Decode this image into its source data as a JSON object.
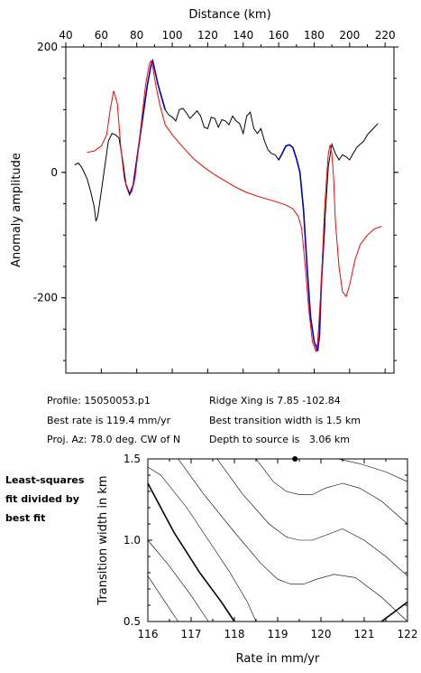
{
  "chart_data": [
    {
      "type": "line",
      "xlabel": "Distance (km)",
      "ylabel": "Anomaly amplitude",
      "xlim": [
        40,
        225
      ],
      "ylim": [
        -320,
        200
      ],
      "x_ticks": [
        "40",
        "60",
        "80",
        "100",
        "120",
        "140",
        "160",
        "180",
        "200",
        "220"
      ],
      "y_ticks": [
        "200",
        "0",
        "-200"
      ],
      "series": [
        {
          "color": "#000000",
          "points": [
            [
              45,
              12
            ],
            [
              47,
              15
            ],
            [
              49,
              8
            ],
            [
              52,
              -10
            ],
            [
              54,
              -30
            ],
            [
              56,
              -55
            ],
            [
              57,
              -78
            ],
            [
              58,
              -70
            ],
            [
              60,
              -30
            ],
            [
              62,
              10
            ],
            [
              64,
              50
            ],
            [
              66,
              62
            ],
            [
              68,
              60
            ],
            [
              70,
              55
            ],
            [
              72,
              20
            ],
            [
              74,
              -20
            ],
            [
              76,
              -35
            ],
            [
              78,
              -20
            ],
            [
              80,
              20
            ],
            [
              82,
              60
            ],
            [
              84,
              100
            ],
            [
              86,
              140
            ],
            [
              88,
              170
            ],
            [
              89,
              178
            ],
            [
              90,
              165
            ],
            [
              92,
              140
            ],
            [
              94,
              120
            ],
            [
              96,
              100
            ],
            [
              98,
              92
            ],
            [
              100,
              88
            ],
            [
              102,
              82
            ],
            [
              104,
              100
            ],
            [
              106,
              102
            ],
            [
              108,
              95
            ],
            [
              110,
              86
            ],
            [
              112,
              92
            ],
            [
              114,
              98
            ],
            [
              116,
              90
            ],
            [
              118,
              72
            ],
            [
              120,
              70
            ],
            [
              122,
              88
            ],
            [
              124,
              86
            ],
            [
              126,
              72
            ],
            [
              128,
              84
            ],
            [
              130,
              82
            ],
            [
              132,
              76
            ],
            [
              134,
              90
            ],
            [
              136,
              82
            ],
            [
              138,
              78
            ],
            [
              140,
              62
            ],
            [
              142,
              90
            ],
            [
              144,
              96
            ],
            [
              146,
              70
            ],
            [
              148,
              62
            ],
            [
              150,
              70
            ],
            [
              152,
              50
            ],
            [
              154,
              36
            ],
            [
              156,
              30
            ],
            [
              158,
              28
            ],
            [
              160,
              20
            ],
            [
              162,
              30
            ],
            [
              164,
              42
            ],
            [
              166,
              44
            ],
            [
              168,
              40
            ],
            [
              170,
              22
            ],
            [
              172,
              0
            ],
            [
              174,
              -60
            ],
            [
              176,
              -150
            ],
            [
              178,
              -230
            ],
            [
              180,
              -270
            ],
            [
              182,
              -285
            ],
            [
              183,
              -260
            ],
            [
              184,
              -180
            ],
            [
              186,
              -80
            ],
            [
              188,
              10
            ],
            [
              190,
              45
            ],
            [
              192,
              30
            ],
            [
              194,
              20
            ],
            [
              196,
              28
            ],
            [
              198,
              25
            ],
            [
              200,
              20
            ],
            [
              202,
              30
            ],
            [
              204,
              40
            ],
            [
              206,
              45
            ],
            [
              208,
              50
            ],
            [
              210,
              60
            ],
            [
              212,
              66
            ],
            [
              214,
              72
            ],
            [
              216,
              78
            ]
          ]
        },
        {
          "color": "#0000cc",
          "points": [
            [
              74,
              -20
            ],
            [
              76,
              -35
            ],
            [
              78,
              -20
            ],
            [
              80,
              20
            ],
            [
              82,
              60
            ],
            [
              84,
              100
            ],
            [
              86,
              140
            ],
            [
              88,
              170
            ],
            [
              89,
              178
            ],
            [
              90,
              165
            ],
            [
              92,
              140
            ],
            [
              94,
              120
            ],
            [
              96,
              100
            ],
            [
              160,
              20
            ],
            [
              162,
              30
            ],
            [
              164,
              42
            ],
            [
              166,
              44
            ],
            [
              168,
              40
            ],
            [
              170,
              22
            ],
            [
              172,
              0
            ],
            [
              174,
              -60
            ],
            [
              176,
              -150
            ],
            [
              178,
              -230
            ],
            [
              180,
              -270
            ],
            [
              182,
              -285
            ],
            [
              183,
              -260
            ],
            [
              184,
              -180
            ],
            [
              186,
              -80
            ]
          ]
        },
        {
          "color": "#ff0000",
          "points": [
            [
              52,
              32
            ],
            [
              56,
              34
            ],
            [
              60,
              42
            ],
            [
              63,
              60
            ],
            [
              65,
              100
            ],
            [
              67,
              130
            ],
            [
              69,
              110
            ],
            [
              71,
              40
            ],
            [
              73,
              -10
            ],
            [
              75,
              -30
            ],
            [
              77,
              -32
            ],
            [
              79,
              -10
            ],
            [
              81,
              40
            ],
            [
              83,
              90
            ],
            [
              85,
              140
            ],
            [
              87,
              172
            ],
            [
              88,
              178
            ],
            [
              89,
              168
            ],
            [
              91,
              135
            ],
            [
              93,
              108
            ],
            [
              96,
              76
            ],
            [
              100,
              60
            ],
            [
              106,
              40
            ],
            [
              112,
              22
            ],
            [
              118,
              8
            ],
            [
              124,
              -4
            ],
            [
              130,
              -14
            ],
            [
              136,
              -24
            ],
            [
              142,
              -32
            ],
            [
              148,
              -38
            ],
            [
              154,
              -43
            ],
            [
              160,
              -48
            ],
            [
              164,
              -52
            ],
            [
              168,
              -58
            ],
            [
              171,
              -70
            ],
            [
              173,
              -90
            ],
            [
              175,
              -150
            ],
            [
              177,
              -220
            ],
            [
              179,
              -270
            ],
            [
              181,
              -285
            ],
            [
              182,
              -270
            ],
            [
              184,
              -180
            ],
            [
              186,
              -50
            ],
            [
              188,
              30
            ],
            [
              189,
              44
            ],
            [
              190,
              30
            ],
            [
              191,
              -10
            ],
            [
              192,
              -80
            ],
            [
              194,
              -150
            ],
            [
              196,
              -190
            ],
            [
              198,
              -198
            ],
            [
              200,
              -180
            ],
            [
              203,
              -140
            ],
            [
              206,
              -115
            ],
            [
              210,
              -100
            ],
            [
              214,
              -90
            ],
            [
              218,
              -86
            ]
          ]
        }
      ]
    },
    {
      "type": "contour",
      "xlabel": "Rate in mm/yr",
      "ylabel": "Transition width in km",
      "xlim": [
        116,
        122
      ],
      "ylim": [
        0.5,
        1.5
      ],
      "x_ticks": [
        "116",
        "117",
        "118",
        "119",
        "120",
        "121",
        "122"
      ],
      "y_ticks": [
        "0.5",
        "1.0",
        "1.5"
      ],
      "best_fit": {
        "rate": 119.4,
        "width": 1.5
      },
      "contours": [
        {
          "bold": true,
          "points": [
            [
              116.0,
              1.35
            ],
            [
              116.6,
              1.05
            ],
            [
              117.2,
              0.8
            ],
            [
              117.7,
              0.62
            ],
            [
              118.0,
              0.5
            ]
          ]
        },
        {
          "bold": false,
          "points": [
            [
              116.0,
              1.0
            ],
            [
              116.5,
              0.84
            ],
            [
              117.0,
              0.66
            ],
            [
              117.4,
              0.5
            ]
          ]
        },
        {
          "bold": false,
          "points": [
            [
              116.0,
              0.78
            ],
            [
              116.4,
              0.62
            ],
            [
              116.7,
              0.5
            ]
          ]
        },
        {
          "bold": false,
          "points": [
            [
              116.0,
              1.45
            ],
            [
              116.3,
              1.4
            ],
            [
              116.9,
              1.2
            ],
            [
              117.4,
              1.0
            ],
            [
              117.9,
              0.8
            ],
            [
              118.3,
              0.62
            ],
            [
              118.5,
              0.5
            ]
          ]
        },
        {
          "bold": false,
          "points": [
            [
              116.7,
              1.5
            ],
            [
              117.3,
              1.28
            ],
            [
              118.0,
              1.05
            ],
            [
              118.6,
              0.86
            ],
            [
              119.0,
              0.76
            ],
            [
              119.3,
              0.73
            ],
            [
              119.6,
              0.73
            ],
            [
              119.9,
              0.76
            ],
            [
              120.3,
              0.79
            ],
            [
              120.8,
              0.77
            ],
            [
              121.4,
              0.65
            ],
            [
              122.0,
              0.5
            ]
          ]
        },
        {
          "bold": false,
          "points": [
            [
              117.6,
              1.5
            ],
            [
              118.2,
              1.28
            ],
            [
              118.8,
              1.1
            ],
            [
              119.2,
              1.02
            ],
            [
              119.5,
              1.0
            ],
            [
              119.8,
              1.0
            ],
            [
              120.1,
              1.03
            ],
            [
              120.5,
              1.07
            ],
            [
              121.0,
              1.0
            ],
            [
              121.5,
              0.9
            ],
            [
              122.0,
              0.78
            ]
          ]
        },
        {
          "bold": false,
          "points": [
            [
              118.5,
              1.5
            ],
            [
              118.9,
              1.36
            ],
            [
              119.2,
              1.3
            ],
            [
              119.5,
              1.28
            ],
            [
              119.8,
              1.28
            ],
            [
              120.1,
              1.32
            ],
            [
              120.5,
              1.35
            ],
            [
              120.9,
              1.32
            ],
            [
              121.4,
              1.24
            ],
            [
              122.0,
              1.1
            ]
          ]
        },
        {
          "bold": false,
          "points": [
            [
              120.4,
              1.5
            ],
            [
              120.9,
              1.47
            ],
            [
              121.5,
              1.42
            ],
            [
              122.0,
              1.36
            ]
          ]
        },
        {
          "bold": true,
          "points": [
            [
              121.4,
              0.5
            ],
            [
              121.8,
              0.58
            ],
            [
              122.0,
              0.62
            ]
          ]
        }
      ]
    }
  ],
  "info": {
    "profile": "Profile: 15050053.p1",
    "best_rate": "Best rate is 119.4 mm/yr",
    "proj_az": "Proj. Az: 78.0 deg. CW of N",
    "ridge_xing": "Ridge Xing is 7.85 -102.84",
    "best_width": "Best transition width is 1.5 km",
    "depth": "Depth to source is   3.06 km"
  },
  "sidebar_note": [
    "Least-squares",
    "fit divided by",
    "best fit"
  ]
}
